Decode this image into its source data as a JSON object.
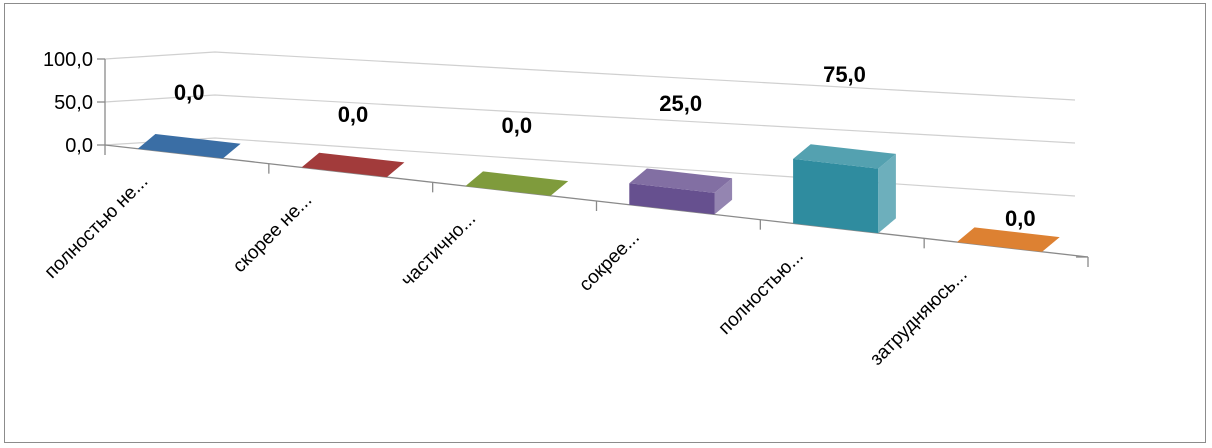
{
  "chart_data": {
    "type": "bar",
    "style": "3d-column",
    "categories": [
      "полностью не...",
      "скорее не...",
      "частично...",
      "сокрее...",
      "полностью...",
      "затрудняюсь..."
    ],
    "values": [
      0.0,
      0.0,
      0.0,
      25.0,
      75.0,
      0.0
    ],
    "data_labels": [
      "0,0",
      "0,0",
      "0,0",
      "25,0",
      "75,0",
      "0,0"
    ],
    "y_ticks": [
      "0,0",
      "50,0",
      "100,0"
    ],
    "y_tick_values": [
      0,
      50,
      100
    ],
    "ylim": [
      0,
      100
    ],
    "colors": [
      "#3a6ea5",
      "#a23b3b",
      "#7f9b3c",
      "#66508f",
      "#2f8c9f",
      "#dd8132"
    ],
    "grid": true,
    "legend": "none",
    "title": "",
    "xlabel": "",
    "ylabel": ""
  }
}
